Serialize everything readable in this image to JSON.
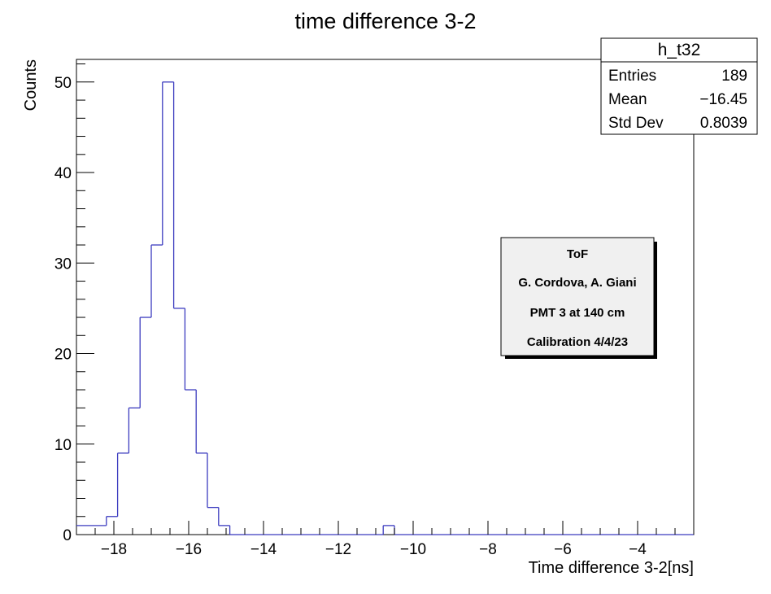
{
  "chart_data": {
    "type": "bar",
    "histogram": true,
    "title": "time difference 3-2",
    "xlabel": "Time difference 3-2[ns]",
    "ylabel": "Counts",
    "xlim": [
      -19.0,
      -2.5
    ],
    "ylim": [
      0,
      52.5
    ],
    "x_ticks": [
      -18,
      -16,
      -14,
      -12,
      -10,
      -8,
      -6,
      -4
    ],
    "x_tick_labels": [
      "−18",
      "−16",
      "−14",
      "−12",
      "−10",
      "−8",
      "−6",
      "−4"
    ],
    "y_ticks": [
      0,
      10,
      20,
      30,
      40,
      50
    ],
    "y_tick_labels": [
      "0",
      "10",
      "20",
      "30",
      "40",
      "50"
    ],
    "bin_width": 0.3,
    "bin_edges": [
      -19.0,
      -18.2,
      -17.9,
      -17.6,
      -17.3,
      -17.0,
      -16.7,
      -16.4,
      -16.1,
      -15.8,
      -15.5,
      -15.2,
      -14.9,
      -14.6,
      -10.8,
      -10.5,
      -2.5
    ],
    "values": [
      1,
      2,
      9,
      14,
      24,
      32,
      50,
      25,
      16,
      9,
      3,
      1,
      0,
      0,
      1,
      0
    ],
    "line_color": "#3b3bbf",
    "grid": false,
    "stats_box": {
      "name": "h_t32",
      "rows": [
        {
          "label": "Entries",
          "value": "189"
        },
        {
          "label": "Mean",
          "value": "−16.45"
        },
        {
          "label": "Std Dev",
          "value": "0.8039"
        }
      ]
    },
    "annotation_lines": [
      "ToF",
      "G. Cordova, A. Giani",
      "PMT 3 at 140 cm",
      "Calibration 4/4/23"
    ]
  }
}
